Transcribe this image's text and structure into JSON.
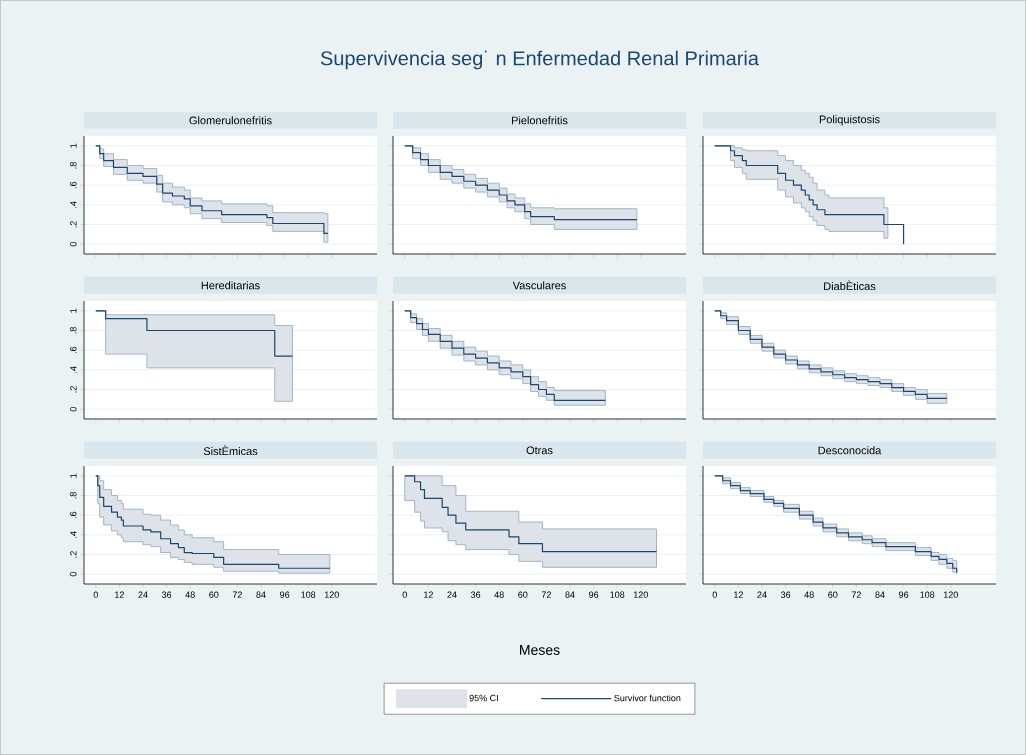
{
  "chart_data": [
    {
      "type": "step",
      "title": "Glomerulonefritis",
      "grid": "y",
      "tick_labels": "y",
      "xlim": [
        -6,
        143
      ],
      "ylim": [
        -0.1,
        1.1
      ],
      "xticks": [
        0,
        12,
        24,
        36,
        48,
        60,
        72,
        84,
        96,
        108,
        120
      ],
      "yticks": [
        0,
        {
          "value": 0.2,
          "label": ".2"
        },
        {
          "value": 0.4,
          "label": ".4"
        },
        {
          "value": 0.6,
          "label": ".6"
        },
        {
          "value": 0.8,
          "label": ".8"
        },
        1
      ],
      "series": [
        {
          "color": "#1a476f",
          "x": [
            0,
            2,
            4,
            9,
            16,
            24,
            31,
            34,
            39,
            45,
            48,
            54,
            64,
            87,
            90,
            116,
            118
          ],
          "values": [
            1,
            0.92,
            0.85,
            0.78,
            0.72,
            0.69,
            0.61,
            0.52,
            0.49,
            0.46,
            0.39,
            0.34,
            0.3,
            0.27,
            0.21,
            0.11,
            0.11
          ],
          "upper": [
            1,
            0.97,
            0.92,
            0.86,
            0.8,
            0.77,
            0.7,
            0.62,
            0.58,
            0.55,
            0.47,
            0.44,
            0.41,
            0.39,
            0.32,
            0.31,
            0.31
          ],
          "lower": [
            1,
            0.87,
            0.79,
            0.71,
            0.65,
            0.62,
            0.53,
            0.43,
            0.4,
            0.37,
            0.31,
            0.26,
            0.22,
            0.19,
            0.13,
            0.02,
            0.02
          ]
        }
      ]
    },
    {
      "type": "step",
      "title": "Pielonefritis",
      "grid": "y",
      "tick_labels": false,
      "xlim": [
        -6,
        143
      ],
      "ylim": [
        -0.1,
        1.1
      ],
      "xticks": [
        0,
        12,
        24,
        36,
        48,
        60,
        72,
        84,
        96,
        108,
        120
      ],
      "yticks": [
        0,
        0.2,
        0.4,
        0.6,
        0.8,
        1
      ],
      "annotations": [
        "Supervivencia seg˙ n Enfermedad Renal Primaria"
      ],
      "series": [
        {
          "color": "#1a476f",
          "x": [
            0,
            4,
            8,
            12,
            18,
            24,
            30,
            36,
            42,
            48,
            52,
            56,
            61,
            64,
            76,
            118
          ],
          "values": [
            1,
            0.93,
            0.86,
            0.8,
            0.73,
            0.69,
            0.64,
            0.6,
            0.55,
            0.5,
            0.44,
            0.4,
            0.33,
            0.28,
            0.25,
            0.25
          ],
          "upper": [
            1,
            0.98,
            0.92,
            0.86,
            0.8,
            0.76,
            0.71,
            0.67,
            0.62,
            0.57,
            0.51,
            0.47,
            0.41,
            0.37,
            0.36,
            0.36
          ],
          "lower": [
            1,
            0.87,
            0.8,
            0.73,
            0.66,
            0.62,
            0.57,
            0.53,
            0.48,
            0.43,
            0.37,
            0.33,
            0.26,
            0.2,
            0.15,
            0.15
          ]
        }
      ]
    },
    {
      "type": "step",
      "title": "Poliquistosis",
      "grid": "y",
      "tick_labels": false,
      "xlim": [
        -6,
        143
      ],
      "ylim": [
        -0.1,
        1.1
      ],
      "xticks": [
        0,
        12,
        24,
        36,
        48,
        60,
        72,
        84,
        96,
        108,
        120
      ],
      "yticks": [
        0,
        0.2,
        0.4,
        0.6,
        0.8,
        1
      ],
      "series": [
        {
          "color": "#1a476f",
          "x": [
            0,
            8,
            10,
            14,
            16,
            32,
            36,
            40,
            44,
            46,
            48,
            50,
            52,
            56,
            58,
            86,
            88,
            96
          ],
          "values": [
            1,
            0.95,
            0.9,
            0.85,
            0.8,
            0.72,
            0.65,
            0.6,
            0.55,
            0.5,
            0.45,
            0.4,
            0.35,
            0.3,
            0.3,
            0.2,
            0.2,
            0
          ],
          "upper": [
            1,
            1,
            0.98,
            0.96,
            0.95,
            0.9,
            0.85,
            0.8,
            0.75,
            0.72,
            0.68,
            0.62,
            0.55,
            0.5,
            0.47,
            0.37,
            0.37,
            null
          ],
          "lower": [
            1,
            0.85,
            0.78,
            0.72,
            0.66,
            0.55,
            0.48,
            0.42,
            0.37,
            0.33,
            0.28,
            0.24,
            0.19,
            0.15,
            0.13,
            0.06,
            0.06,
            null
          ]
        }
      ]
    },
    {
      "type": "step",
      "title": "Hereditarias",
      "grid": "y",
      "tick_labels": "y",
      "xlim": [
        -6,
        143
      ],
      "ylim": [
        -0.1,
        1.1
      ],
      "xticks": [
        0,
        12,
        24,
        36,
        48,
        60,
        72,
        84,
        96,
        108,
        120
      ],
      "yticks": [
        0,
        {
          "value": 0.2,
          "label": ".2"
        },
        {
          "value": 0.4,
          "label": ".4"
        },
        {
          "value": 0.6,
          "label": ".6"
        },
        {
          "value": 0.8,
          "label": ".8"
        },
        1
      ],
      "series": [
        {
          "color": "#1a476f",
          "x": [
            0,
            5,
            26,
            91,
            100
          ],
          "values": [
            1,
            0.92,
            0.8,
            0.54,
            0.54
          ],
          "upper": [
            1,
            0.96,
            0.96,
            0.85,
            0.85
          ],
          "lower": [
            1,
            0.56,
            0.42,
            0.08,
            0.08
          ]
        }
      ]
    },
    {
      "type": "step",
      "title": "Vasculares",
      "grid": "y",
      "tick_labels": false,
      "xlim": [
        -6,
        143
      ],
      "ylim": [
        -0.1,
        1.1
      ],
      "xticks": [
        0,
        12,
        24,
        36,
        48,
        60,
        72,
        84,
        96,
        108,
        120
      ],
      "yticks": [
        0,
        0.2,
        0.4,
        0.6,
        0.8,
        1
      ],
      "series": [
        {
          "color": "#1a476f",
          "x": [
            0,
            3,
            6,
            9,
            12,
            18,
            24,
            30,
            36,
            42,
            48,
            54,
            60,
            64,
            68,
            72,
            76,
            102
          ],
          "values": [
            1,
            0.93,
            0.87,
            0.81,
            0.76,
            0.69,
            0.62,
            0.56,
            0.52,
            0.47,
            0.42,
            0.38,
            0.33,
            0.25,
            0.2,
            0.15,
            0.09,
            0.09
          ],
          "upper": [
            1,
            0.97,
            0.92,
            0.87,
            0.82,
            0.75,
            0.69,
            0.63,
            0.59,
            0.54,
            0.49,
            0.45,
            0.4,
            0.33,
            0.28,
            0.22,
            0.19,
            0.19
          ],
          "lower": [
            1,
            0.88,
            0.81,
            0.75,
            0.69,
            0.62,
            0.55,
            0.49,
            0.45,
            0.4,
            0.35,
            0.31,
            0.26,
            0.18,
            0.13,
            0.09,
            0.04,
            0.04
          ]
        }
      ]
    },
    {
      "type": "step",
      "title": "DiabÈticas",
      "grid": "y",
      "tick_labels": false,
      "xlim": [
        -6,
        143
      ],
      "ylim": [
        -0.1,
        1.1
      ],
      "xticks": [
        0,
        12,
        24,
        36,
        48,
        60,
        72,
        84,
        96,
        108,
        120
      ],
      "yticks": [
        0,
        0.2,
        0.4,
        0.6,
        0.8,
        1
      ],
      "series": [
        {
          "color": "#1a476f",
          "x": [
            0,
            3,
            6,
            12,
            18,
            24,
            30,
            36,
            42,
            48,
            54,
            60,
            66,
            72,
            78,
            84,
            90,
            96,
            102,
            108,
            118
          ],
          "values": [
            1,
            0.95,
            0.9,
            0.8,
            0.71,
            0.63,
            0.56,
            0.5,
            0.45,
            0.41,
            0.38,
            0.35,
            0.32,
            0.3,
            0.28,
            0.26,
            0.22,
            0.18,
            0.15,
            0.11,
            0.11
          ],
          "upper": [
            1,
            0.98,
            0.94,
            0.84,
            0.75,
            0.67,
            0.6,
            0.54,
            0.49,
            0.45,
            0.42,
            0.39,
            0.36,
            0.34,
            0.32,
            0.3,
            0.26,
            0.22,
            0.2,
            0.16,
            0.16
          ],
          "lower": [
            1,
            0.92,
            0.86,
            0.76,
            0.67,
            0.59,
            0.52,
            0.46,
            0.41,
            0.37,
            0.34,
            0.31,
            0.28,
            0.26,
            0.24,
            0.22,
            0.18,
            0.14,
            0.1,
            0.06,
            0.06
          ]
        }
      ]
    },
    {
      "type": "step",
      "title": "SistÈmicas",
      "grid": "y",
      "xlim": [
        -6,
        143
      ],
      "ylim": [
        -0.1,
        1.1
      ],
      "xticks": [
        0,
        12,
        24,
        36,
        48,
        60,
        72,
        84,
        96,
        108,
        120
      ],
      "yticks": [
        0,
        {
          "value": 0.2,
          "label": ".2"
        },
        {
          "value": 0.4,
          "label": ".4"
        },
        {
          "value": 0.6,
          "label": ".6"
        },
        {
          "value": 0.8,
          "label": ".8"
        },
        1
      ],
      "series": [
        {
          "color": "#1a476f",
          "x": [
            0,
            1,
            2,
            4,
            8,
            11,
            13,
            14,
            24,
            28,
            33,
            38,
            42,
            45,
            49,
            60,
            65,
            93,
            119
          ],
          "values": [
            1,
            0.9,
            0.78,
            0.69,
            0.63,
            0.58,
            0.55,
            0.49,
            0.45,
            0.43,
            0.36,
            0.31,
            0.27,
            0.22,
            0.21,
            0.17,
            0.1,
            0.06,
            0.06
          ],
          "upper": [
            1,
            1,
            0.95,
            0.86,
            0.8,
            0.75,
            0.72,
            0.66,
            0.61,
            0.6,
            0.55,
            0.5,
            0.45,
            0.4,
            0.37,
            0.33,
            0.25,
            0.2,
            0.2
          ],
          "lower": [
            1,
            0.72,
            0.58,
            0.5,
            0.44,
            0.4,
            0.37,
            0.33,
            0.3,
            0.28,
            0.22,
            0.17,
            0.15,
            0.12,
            0.1,
            0.07,
            0.03,
            0.01,
            0.01
          ]
        }
      ]
    },
    {
      "type": "step",
      "title": "Otras",
      "xlabel": "Meses",
      "grid": "y",
      "tick_labels": "x",
      "legend": "bottom",
      "xlim": [
        -6,
        143
      ],
      "ylim": [
        -0.1,
        1.1
      ],
      "xticks": [
        0,
        12,
        24,
        36,
        48,
        60,
        72,
        84,
        96,
        108,
        120
      ],
      "yticks": [
        0,
        0.2,
        0.4,
        0.6,
        0.8,
        1
      ],
      "annotations": [
        "95% CI"
      ],
      "series": [
        {
          "name": "Survivor function",
          "color": "#1a476f",
          "x": [
            0,
            5,
            8,
            10,
            19,
            22,
            26,
            31,
            53,
            58,
            70,
            128
          ],
          "values": [
            1,
            0.94,
            0.86,
            0.77,
            0.68,
            0.6,
            0.52,
            0.45,
            0.38,
            0.31,
            0.23,
            0.23
          ],
          "upper": [
            1,
            1,
            1,
            1,
            0.9,
            0.9,
            0.8,
            0.64,
            0.64,
            0.53,
            0.46,
            0.46
          ],
          "lower": [
            0.75,
            0.63,
            0.54,
            0.47,
            0.43,
            0.34,
            0.3,
            0.25,
            0.2,
            0.13,
            0.07,
            0.07
          ]
        }
      ]
    },
    {
      "type": "step",
      "title": "Desconocida",
      "grid": "y",
      "tick_labels": "x",
      "xlim": [
        -6,
        143
      ],
      "ylim": [
        -0.1,
        1.1
      ],
      "xticks": [
        0,
        12,
        24,
        36,
        48,
        60,
        72,
        84,
        96,
        108,
        120
      ],
      "yticks": [
        0,
        0.2,
        0.4,
        0.6,
        0.8,
        1
      ],
      "series": [
        {
          "color": "#1a476f",
          "x": [
            0,
            4,
            8,
            13,
            18,
            25,
            30,
            35,
            43,
            50,
            55,
            62,
            68,
            75,
            80,
            87,
            102,
            110,
            114,
            118,
            121,
            123
          ],
          "values": [
            1,
            0.95,
            0.9,
            0.85,
            0.82,
            0.76,
            0.72,
            0.67,
            0.6,
            0.53,
            0.47,
            0.42,
            0.38,
            0.35,
            0.32,
            0.28,
            0.23,
            0.18,
            0.15,
            0.11,
            0.06,
            0.02
          ],
          "upper": [
            1,
            0.98,
            0.93,
            0.88,
            0.85,
            0.79,
            0.75,
            0.71,
            0.64,
            0.57,
            0.51,
            0.46,
            0.42,
            0.39,
            0.36,
            0.32,
            0.27,
            0.22,
            0.2,
            0.16,
            0.14,
            0.13
          ],
          "lower": [
            1,
            0.92,
            0.87,
            0.82,
            0.79,
            0.73,
            0.69,
            0.63,
            0.56,
            0.49,
            0.43,
            0.38,
            0.34,
            0.31,
            0.28,
            0.24,
            0.19,
            0.14,
            0.1,
            0.06,
            0.02,
            0
          ]
        }
      ]
    }
  ]
}
